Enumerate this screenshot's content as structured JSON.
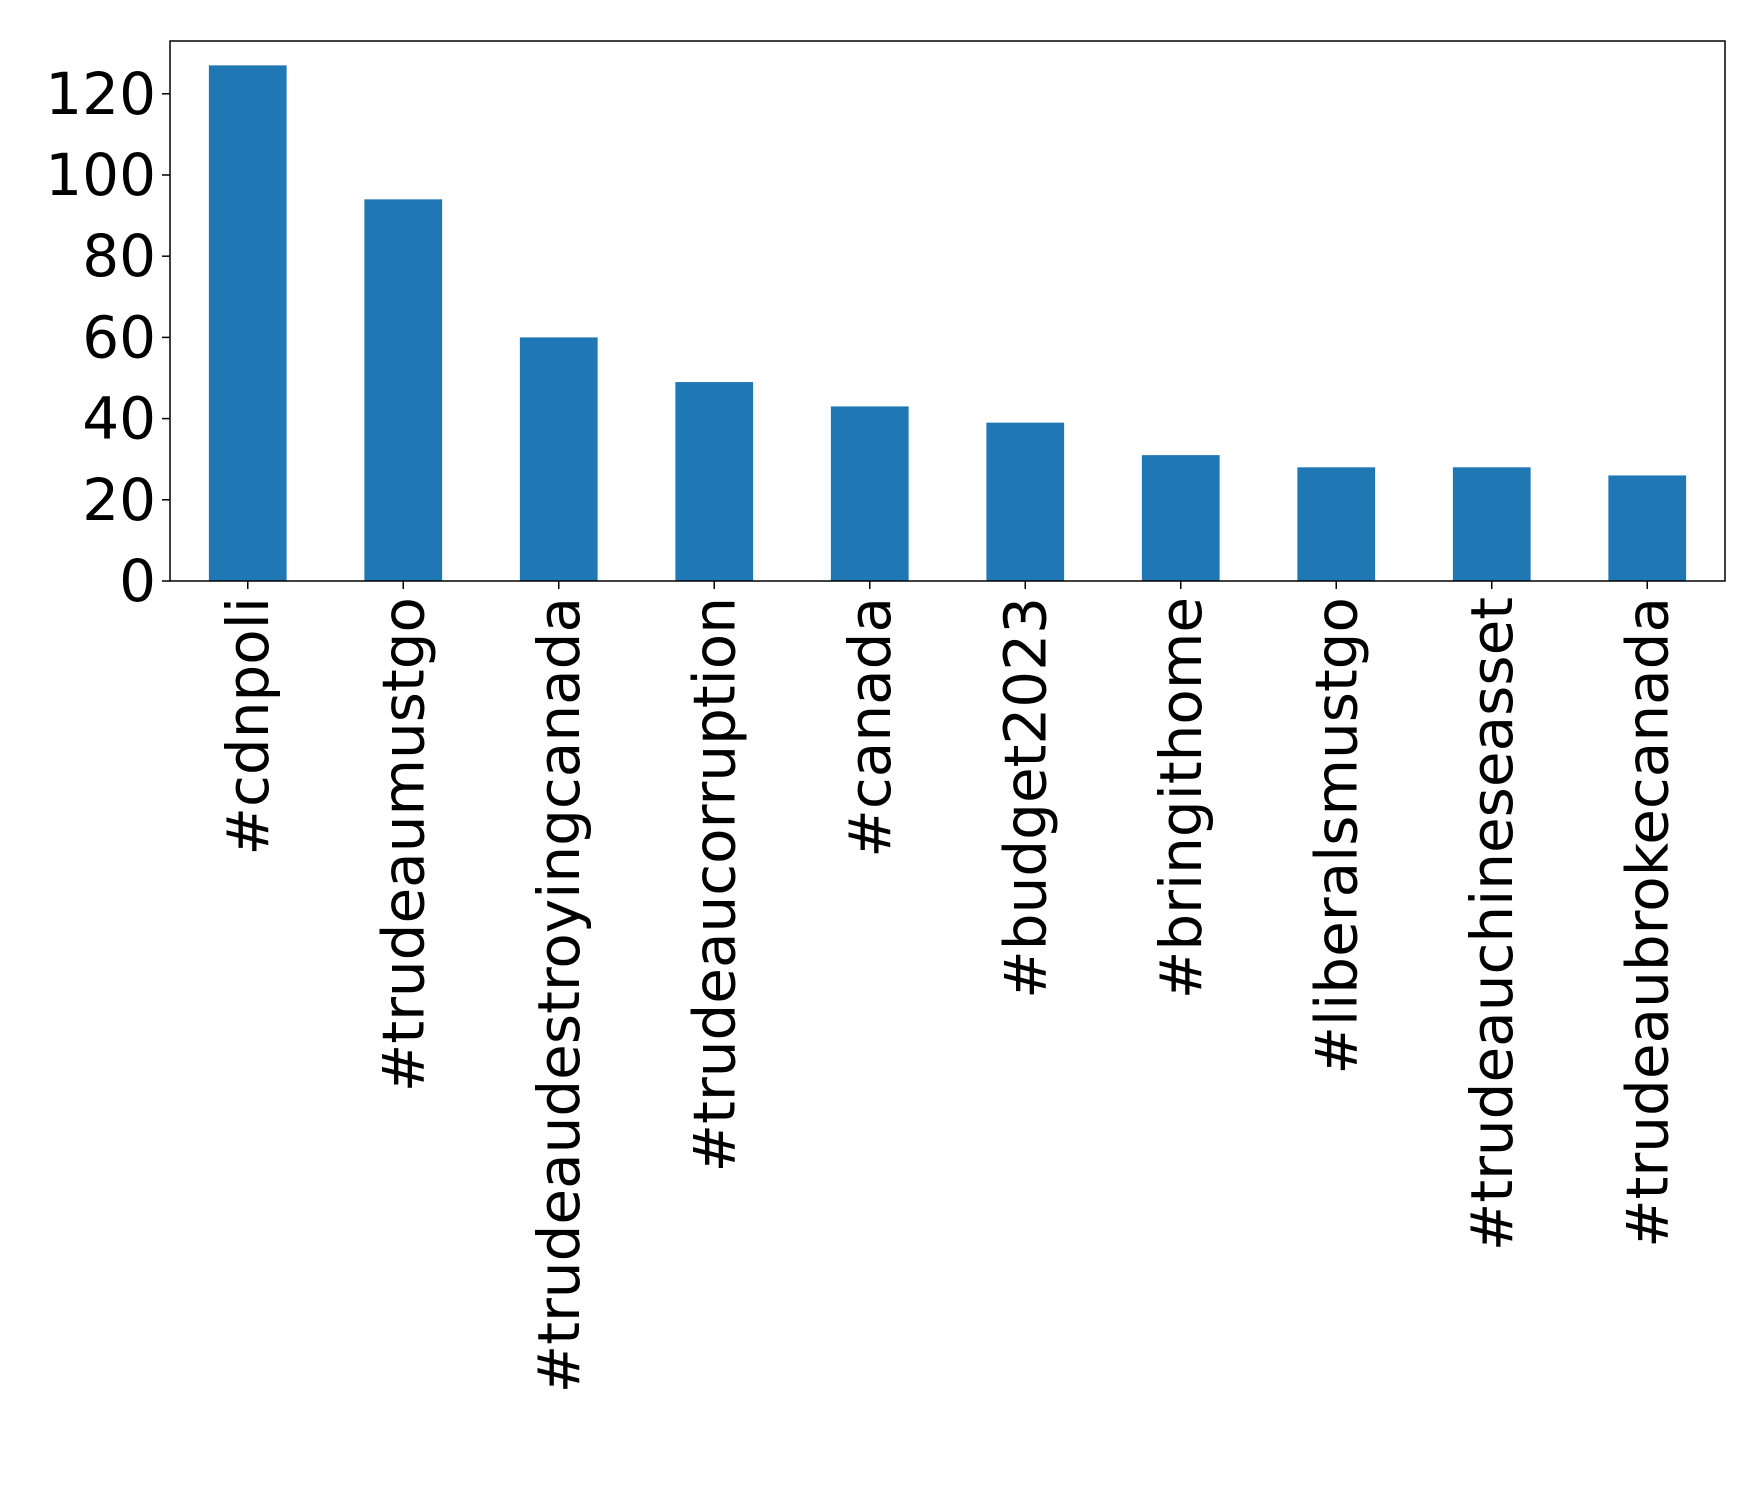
{
  "chart_data": {
    "type": "bar",
    "title": "",
    "xlabel": "",
    "ylabel": "",
    "categories": [
      "#cdnpoli",
      "#trudeaumustgo",
      "#trudeaudestroyingcanada",
      "#trudeaucorruption",
      "#canada",
      "#budget2023",
      "#bringithome",
      "#liberalsmustgo",
      "#trudeauchineseasset",
      "#trudeaubrokecanada"
    ],
    "values": [
      127,
      94,
      60,
      49,
      43,
      39,
      31,
      28,
      28,
      26
    ],
    "ylim": [
      0,
      133
    ],
    "yticks": [
      0,
      20,
      40,
      60,
      80,
      100,
      120
    ],
    "grid": false,
    "legend": "none",
    "bar_color": "#1f77b4"
  }
}
